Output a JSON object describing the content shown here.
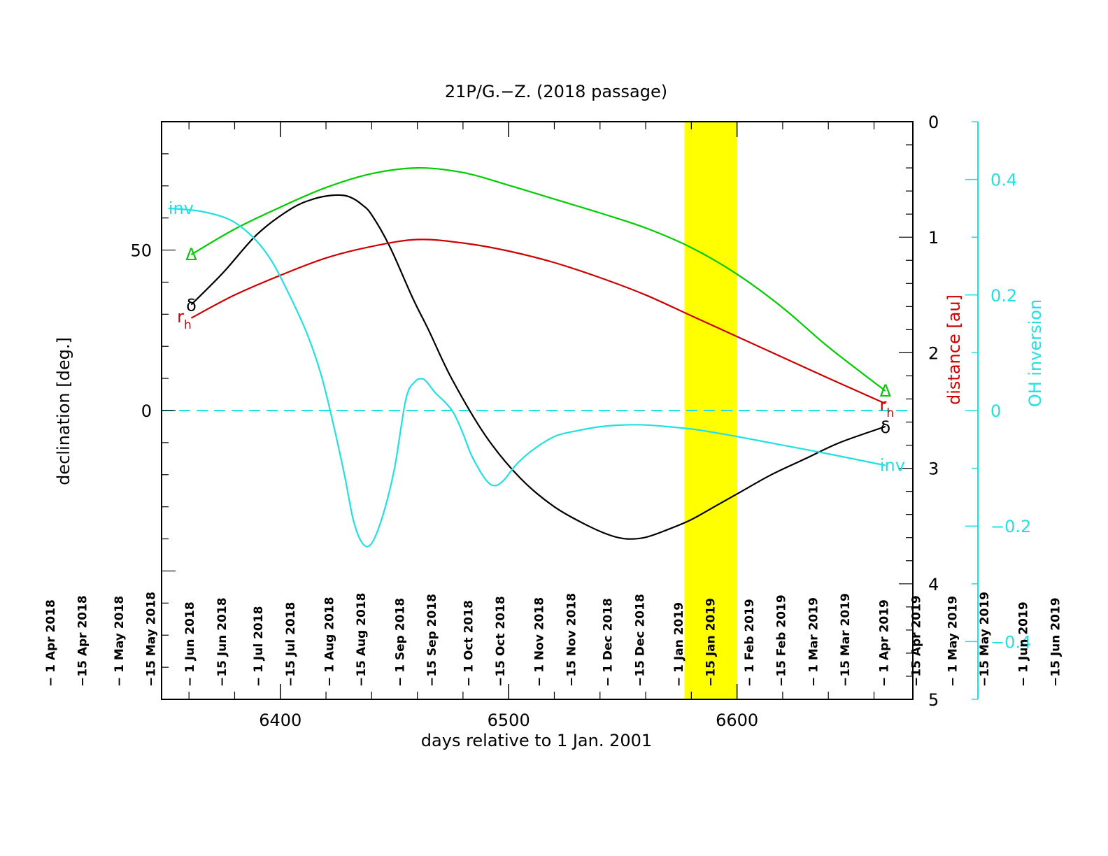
{
  "chart_data": {
    "type": "line",
    "title": "21P/G.−Z. (2018 passage)",
    "xlabel": "days relative to 1 Jan. 2001",
    "ylabel_left": "declination [deg.]",
    "ylabel_right_prefix": "distance ",
    "ylabel_right_unit": "[au]",
    "ylabel_right2": "OH inversion",
    "xlim": [
      6348,
      6677
    ],
    "x_ticks": [
      "6400",
      "6500",
      "6600"
    ],
    "ylim_left": [
      -90,
      90
    ],
    "y_ticks_left": [
      "0",
      "50"
    ],
    "ylim_right_distance": [
      5,
      0
    ],
    "y_ticks_right_distance": [
      "0",
      "1",
      "2",
      "3",
      "4",
      "5"
    ],
    "ylim_right_inversion": [
      -0.5,
      0.5
    ],
    "y_ticks_right_inversion": [
      "0.4",
      "0.2",
      "0",
      "−0.2",
      "−0.4"
    ],
    "highlight_band": {
      "x_start": 6577,
      "x_end": 6600,
      "color": "#ffff00"
    },
    "zero_line_inversion": 0,
    "date_ticks": [
      {
        "label": "− 1 Apr 2018",
        "x": 6299
      },
      {
        "label": "−15 Apr 2018",
        "x": 6313
      },
      {
        "label": "− 1 May 2018",
        "x": 6329
      },
      {
        "label": "−15 May 2018",
        "x": 6343
      },
      {
        "label": "− 1 Jun 2018",
        "x": 6360
      },
      {
        "label": "−15 Jun 2018",
        "x": 6374
      },
      {
        "label": "− 1 Jul 2018",
        "x": 6390
      },
      {
        "label": "−15 Jul 2018",
        "x": 6404
      },
      {
        "label": "− 1 Aug 2018",
        "x": 6421
      },
      {
        "label": "−15 Aug 2018",
        "x": 6435
      },
      {
        "label": "− 1 Sep 2018",
        "x": 6452
      },
      {
        "label": "−15 Sep 2018",
        "x": 6466
      },
      {
        "label": "− 1 Oct 2018",
        "x": 6482
      },
      {
        "label": "−15 Oct 2018",
        "x": 6496
      },
      {
        "label": "− 1 Nov 2018",
        "x": 6513
      },
      {
        "label": "−15 Nov 2018",
        "x": 6527
      },
      {
        "label": "− 1 Dec 2018",
        "x": 6543
      },
      {
        "label": "−15 Dec 2018",
        "x": 6557
      },
      {
        "label": "− 1 Jan 2019",
        "x": 6574
      },
      {
        "label": "−15 Jan 2019",
        "x": 6588
      },
      {
        "label": "− 1 Feb 2019",
        "x": 6605
      },
      {
        "label": "−15 Feb 2019",
        "x": 6619
      },
      {
        "label": "− 1 Mar 2019",
        "x": 6633
      },
      {
        "label": "−15 Mar 2019",
        "x": 6647
      },
      {
        "label": "− 1 Apr 2019",
        "x": 6664
      },
      {
        "label": "−15 Apr 2019",
        "x": 6678
      },
      {
        "label": "− 1 May 2019",
        "x": 6694
      },
      {
        "label": "−15 May 2019",
        "x": 6708
      },
      {
        "label": "− 1 Jun 2019",
        "x": 6725
      },
      {
        "label": "−15 Jun 2019",
        "x": 6739
      }
    ],
    "series": [
      {
        "key": "delta",
        "axis": "left",
        "color": "#000000",
        "label_start": "δ",
        "label_end": "δ",
        "x": [
          6361,
          6375,
          6390,
          6405,
          6415,
          6422,
          6428,
          6432,
          6436,
          6440,
          6448,
          6458,
          6465,
          6475,
          6490,
          6505,
          6520,
          6535,
          6545,
          6552,
          6560,
          6570,
          6580,
          6590,
          6600,
          6615,
          6630,
          6645,
          6665
        ],
        "y": [
          33,
          43,
          55,
          63,
          66,
          67,
          67,
          66,
          64,
          61,
          51,
          35,
          25,
          10,
          -8,
          -21,
          -30,
          -36,
          -39,
          -40,
          -39.5,
          -37,
          -34,
          -30,
          -26,
          -20,
          -15,
          -10,
          -5
        ]
      },
      {
        "key": "rh",
        "axis": "distance",
        "color": "#cc0000",
        "label_start": "r",
        "label_end": "r",
        "label_sub": "h",
        "x": [
          6361,
          6380,
          6400,
          6420,
          6440,
          6460,
          6480,
          6500,
          6520,
          6540,
          6560,
          6580,
          6600,
          6620,
          6640,
          6665
        ],
        "y": [
          1.7,
          1.5,
          1.33,
          1.18,
          1.08,
          1.02,
          1.05,
          1.12,
          1.22,
          1.35,
          1.5,
          1.68,
          1.86,
          2.04,
          2.22,
          2.44
        ]
      },
      {
        "key": "Delta",
        "axis": "distance",
        "color": "#00cc00",
        "label_start": "Δ",
        "label_end": "Δ",
        "x": [
          6361,
          6380,
          6400,
          6420,
          6440,
          6460,
          6480,
          6500,
          6520,
          6540,
          6560,
          6580,
          6600,
          6620,
          6640,
          6665
        ],
        "y": [
          1.15,
          0.93,
          0.74,
          0.57,
          0.45,
          0.4,
          0.44,
          0.55,
          0.67,
          0.79,
          0.92,
          1.09,
          1.32,
          1.61,
          1.95,
          2.33
        ]
      },
      {
        "key": "inv",
        "axis": "inversion",
        "color": "#22e0e0",
        "label_start": "inv",
        "label_end": "inv",
        "x": [
          6351,
          6365,
          6378,
          6388,
          6396,
          6404,
          6412,
          6418,
          6423,
          6428,
          6432,
          6436,
          6440,
          6445,
          6450,
          6455,
          6459,
          6462,
          6464,
          6468,
          6472,
          6476,
          6480,
          6484,
          6490,
          6494,
          6498,
          6503,
          6510,
          6520,
          6530,
          6540,
          6550,
          6560,
          6570,
          6580,
          6590,
          6600,
          6620,
          6640,
          6665
        ],
        "y": [
          0.35,
          0.345,
          0.33,
          0.3,
          0.26,
          0.2,
          0.13,
          0.06,
          -0.02,
          -0.11,
          -0.19,
          -0.23,
          -0.23,
          -0.18,
          -0.1,
          0.02,
          0.05,
          0.055,
          0.05,
          0.03,
          0.015,
          -0.005,
          -0.04,
          -0.08,
          -0.12,
          -0.13,
          -0.12,
          -0.095,
          -0.07,
          -0.045,
          -0.035,
          -0.028,
          -0.025,
          -0.025,
          -0.028,
          -0.032,
          -0.038,
          -0.045,
          -0.06,
          -0.075,
          -0.095
        ]
      }
    ]
  }
}
